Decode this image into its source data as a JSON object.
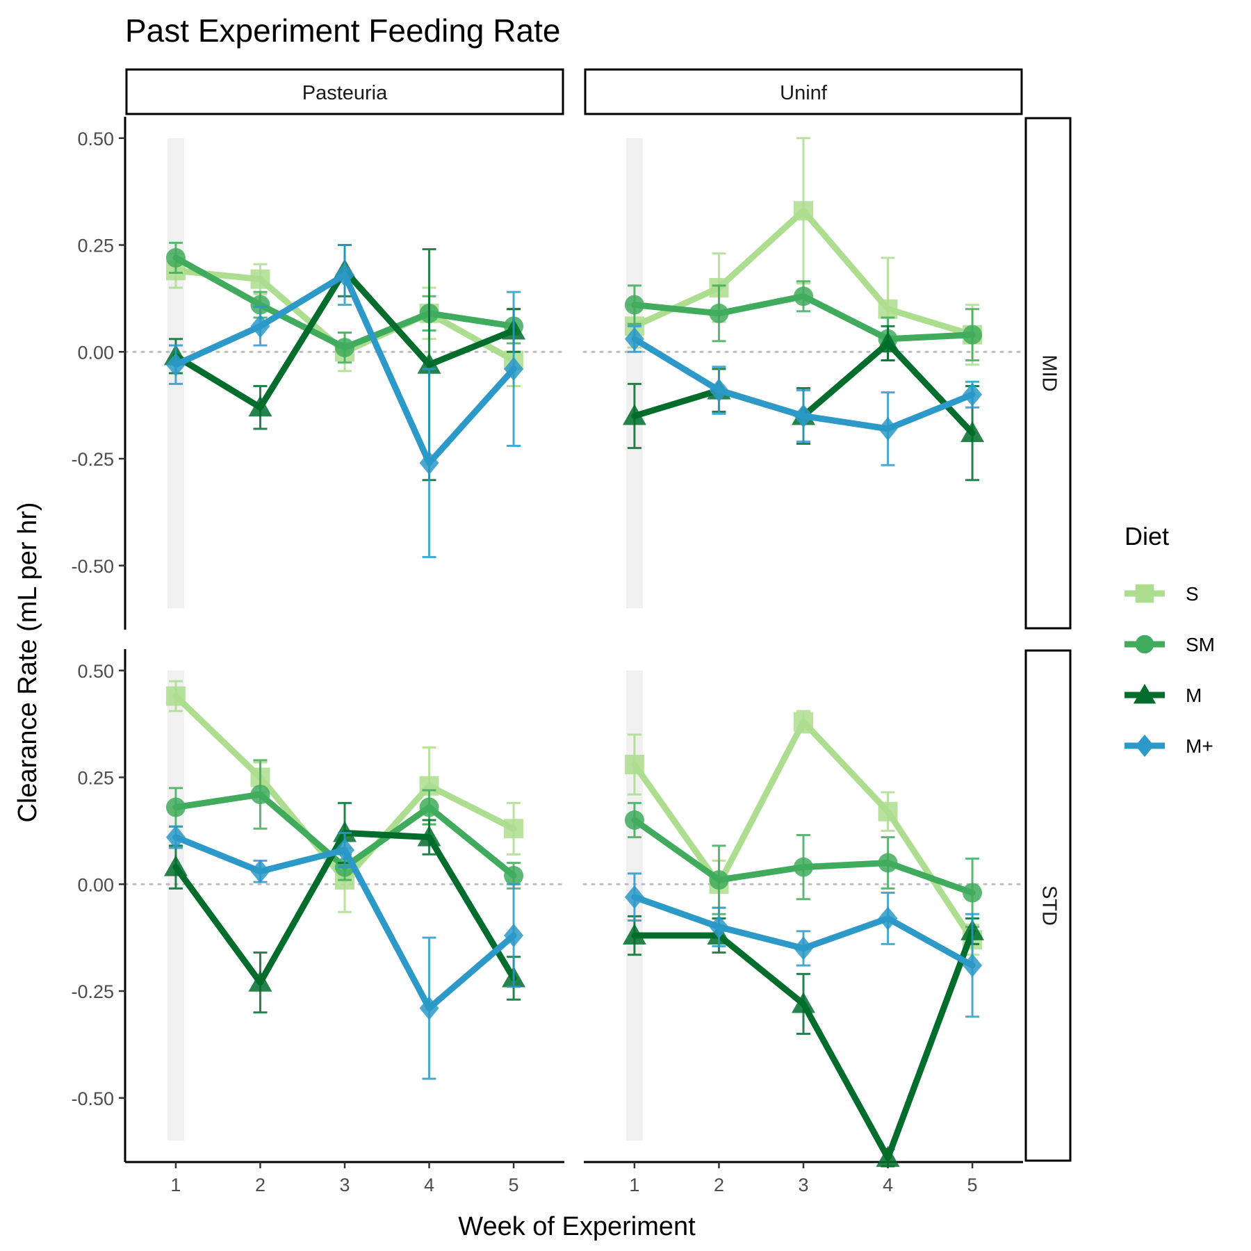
{
  "chart_data": {
    "type": "line",
    "title": "Past Experiment Feeding Rate",
    "xlabel": "Week of Experiment",
    "ylabel": "Clearance Rate (mL per hr)",
    "x_ticks": [
      "1",
      "2",
      "3",
      "4",
      "5"
    ],
    "y_ticks": [
      "0.50",
      "0.25",
      "0.00",
      "-0.25",
      "-0.50"
    ],
    "ylim": [
      -0.65,
      0.55
    ],
    "xlim": [
      0.4,
      5.6
    ],
    "reference_line_y": 0,
    "grid": false,
    "legend": {
      "title": "Diet",
      "position": "right"
    },
    "column_facets": [
      "Pasteuria",
      "Uninf"
    ],
    "row_facets": [
      "MID",
      "STD"
    ],
    "series_styles": [
      {
        "name": "S",
        "color": "#addd8e",
        "marker": "square"
      },
      {
        "name": "SM",
        "color": "#41ab5d",
        "marker": "circle"
      },
      {
        "name": "M",
        "color": "#006d2c",
        "marker": "triangle"
      },
      {
        "name": "M+",
        "color": "#2c99c8",
        "marker": "diamond"
      }
    ],
    "panels": [
      {
        "col": "Pasteuria",
        "row": "MID",
        "series": [
          {
            "name": "S",
            "x": [
              1,
              2,
              3,
              4,
              5
            ],
            "y": [
              0.19,
              0.17,
              0.0,
              0.09,
              -0.02
            ],
            "err": [
              0.04,
              0.035,
              0.045,
              0.06,
              0.06
            ]
          },
          {
            "name": "SM",
            "x": [
              1,
              2,
              3,
              4,
              5
            ],
            "y": [
              0.22,
              0.11,
              0.01,
              0.09,
              0.06
            ],
            "err": [
              0.035,
              0.03,
              0.035,
              0.04,
              0.04
            ]
          },
          {
            "name": "M",
            "x": [
              1,
              2,
              3,
              4,
              5
            ],
            "y": [
              -0.01,
              -0.13,
              0.19,
              -0.03,
              0.05
            ],
            "err": [
              0.04,
              0.05,
              0.06,
              0.27,
              0.05
            ]
          },
          {
            "name": "M+",
            "x": [
              1,
              2,
              3,
              4,
              5
            ],
            "y": [
              -0.03,
              0.06,
              0.18,
              -0.26,
              -0.04
            ],
            "err": [
              0.045,
              0.045,
              0.07,
              0.22,
              0.18
            ]
          }
        ]
      },
      {
        "col": "Uninf",
        "row": "MID",
        "series": [
          {
            "name": "S",
            "x": [
              1,
              2,
              3,
              4,
              5
            ],
            "y": [
              0.06,
              0.15,
              0.33,
              0.1,
              0.04
            ],
            "err": [
              0.05,
              0.08,
              0.17,
              0.12,
              0.07
            ]
          },
          {
            "name": "SM",
            "x": [
              1,
              2,
              3,
              4,
              5
            ],
            "y": [
              0.11,
              0.09,
              0.13,
              0.03,
              0.04
            ],
            "err": [
              0.045,
              0.065,
              0.035,
              0.05,
              0.06
            ]
          },
          {
            "name": "M",
            "x": [
              1,
              2,
              3,
              4,
              5
            ],
            "y": [
              -0.15,
              -0.09,
              -0.15,
              0.02,
              -0.19
            ],
            "err": [
              0.075,
              0.05,
              0.065,
              0.04,
              0.11
            ]
          },
          {
            "name": "M+",
            "x": [
              1,
              2,
              3,
              4,
              5
            ],
            "y": [
              0.03,
              -0.09,
              -0.15,
              -0.18,
              -0.1
            ],
            "err": [
              0.03,
              0.055,
              0.06,
              0.085,
              0.03
            ]
          }
        ]
      },
      {
        "col": "Pasteuria",
        "row": "STD",
        "series": [
          {
            "name": "S",
            "x": [
              1,
              2,
              3,
              4,
              5
            ],
            "y": [
              0.44,
              0.25,
              0.01,
              0.23,
              0.13
            ],
            "err": [
              0.035,
              0.035,
              0.075,
              0.09,
              0.06
            ]
          },
          {
            "name": "SM",
            "x": [
              1,
              2,
              3,
              4,
              5
            ],
            "y": [
              0.18,
              0.21,
              0.04,
              0.18,
              0.02
            ],
            "err": [
              0.045,
              0.08,
              0.03,
              0.04,
              0.03
            ]
          },
          {
            "name": "M",
            "x": [
              1,
              2,
              3,
              4,
              5
            ],
            "y": [
              0.04,
              -0.23,
              0.12,
              0.11,
              -0.22
            ],
            "err": [
              0.05,
              0.07,
              0.07,
              0.04,
              0.05
            ]
          },
          {
            "name": "M+",
            "x": [
              1,
              2,
              3,
              4,
              5
            ],
            "y": [
              0.11,
              0.03,
              0.08,
              -0.29,
              -0.12
            ],
            "err": [
              0.025,
              0.025,
              0.04,
              0.165,
              0.12
            ]
          }
        ]
      },
      {
        "col": "Uninf",
        "row": "STD",
        "series": [
          {
            "name": "S",
            "x": [
              1,
              2,
              3,
              4,
              5
            ],
            "y": [
              0.28,
              0.0,
              0.38,
              0.17,
              -0.13
            ],
            "err": [
              0.07,
              0.055,
              0.025,
              0.045,
              0.035
            ]
          },
          {
            "name": "SM",
            "x": [
              1,
              2,
              3,
              4,
              5
            ],
            "y": [
              0.15,
              0.01,
              0.04,
              0.05,
              -0.02
            ],
            "err": [
              0.04,
              0.08,
              0.075,
              0.06,
              0.08
            ]
          },
          {
            "name": "M",
            "x": [
              1,
              2,
              3,
              4,
              5
            ],
            "y": [
              -0.12,
              -0.12,
              -0.28,
              -0.64,
              -0.11
            ],
            "err": [
              0.045,
              0.04,
              0.07,
              0.02,
              0.03
            ]
          },
          {
            "name": "M+",
            "x": [
              1,
              2,
              3,
              4,
              5
            ],
            "y": [
              -0.03,
              -0.1,
              -0.15,
              -0.08,
              -0.19
            ],
            "err": [
              0.055,
              0.045,
              0.04,
              0.06,
              0.12
            ]
          }
        ]
      }
    ]
  }
}
